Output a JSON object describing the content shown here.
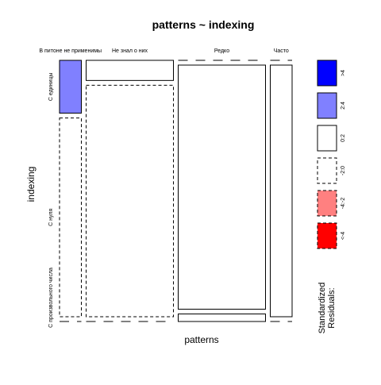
{
  "chart_data": {
    "type": "mosaic",
    "title": "patterns ~ indexing",
    "xlabel": "patterns",
    "ylabel": "indexing",
    "x_categories": [
      "В питоне не применимы",
      "Не знал о них",
      "Редко",
      "Часто"
    ],
    "y_categories": [
      "С единицы",
      "С нуля",
      "С произвольного числа"
    ],
    "cells": [
      {
        "x": "В питоне не применимы",
        "y": "С единицы",
        "proportion": 0.21,
        "shade": "2:4"
      },
      {
        "x": "В питоне не применимы",
        "y": "С нуля",
        "proportion": 0.79,
        "shade": "-2:0"
      },
      {
        "x": "В питоне не применимы",
        "y": "С произвольного числа",
        "proportion": 0.0,
        "shade": "-2:0"
      },
      {
        "x": "Не знал о них",
        "y": "С единицы",
        "proportion": 0.08,
        "shade": "0:2"
      },
      {
        "x": "Не знал о них",
        "y": "С нуля",
        "proportion": 0.92,
        "shade": "-2:0"
      },
      {
        "x": "Не знал о них",
        "y": "С произвольного числа",
        "proportion": 0.0,
        "shade": "-2:0"
      },
      {
        "x": "Редко",
        "y": "С единицы",
        "proportion": 0.0,
        "shade": "-2:0"
      },
      {
        "x": "Редко",
        "y": "С нуля",
        "proportion": 0.97,
        "shade": "0:2"
      },
      {
        "x": "Редко",
        "y": "С произвольного числа",
        "proportion": 0.03,
        "shade": "0:2"
      },
      {
        "x": "Часто",
        "y": "С единицы",
        "proportion": 0.0,
        "shade": "-2:0"
      },
      {
        "x": "Часто",
        "y": "С нуля",
        "proportion": 1.0,
        "shade": "0:2"
      },
      {
        "x": "Часто",
        "y": "С произвольного числа",
        "proportion": 0.0,
        "shade": "-2:0"
      }
    ],
    "x_proportions": [
      0.1,
      0.4,
      0.4,
      0.1
    ],
    "legend": {
      "title_lines": [
        "Standardized",
        "Residuals:"
      ],
      "position": "right",
      "entries": [
        {
          "label": ">4",
          "fill": "#0000ff",
          "dashed": false
        },
        {
          "label": "2:4",
          "fill": "#8080ff",
          "dashed": false
        },
        {
          "label": "0:2",
          "fill": "#ffffff",
          "dashed": false
        },
        {
          "label": "-2:0",
          "fill": "#ffffff",
          "dashed": true
        },
        {
          "label": "-4:-2",
          "fill": "#ff8080",
          "dashed": true
        },
        {
          "label": "<-4",
          "fill": "#ff0000",
          "dashed": true
        }
      ]
    }
  }
}
